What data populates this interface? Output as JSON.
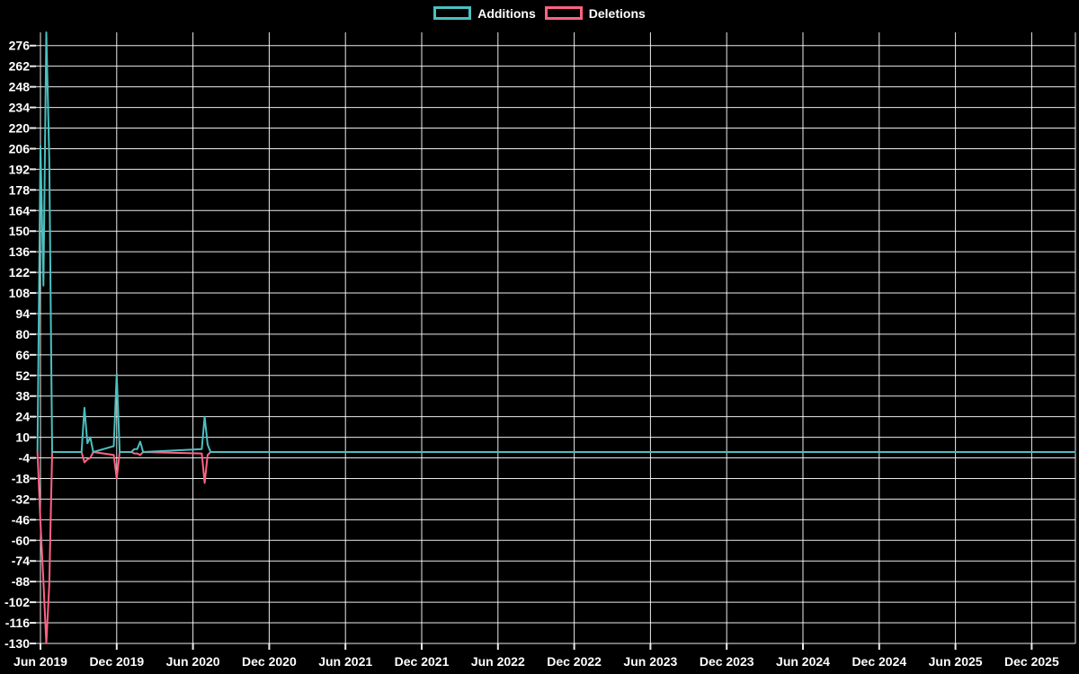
{
  "chart_data": {
    "type": "line",
    "title": "",
    "legend_position": "top-center",
    "background_color": "#000000",
    "grid": true,
    "grid_color": "#ffffff",
    "label_color": "#ffffff",
    "x_axis": {
      "unit": "weeks since mid-June 2019",
      "tick_labels": [
        "Jun 2019",
        "Dec 2019",
        "Jun 2020",
        "Dec 2020",
        "Jun 2021",
        "Dec 2021",
        "Jun 2022",
        "Dec 2022",
        "Jun 2023",
        "Dec 2023",
        "Jun 2024",
        "Dec 2024",
        "Jun 2025",
        "Dec 2025"
      ],
      "weeks_per_tick": 26
    },
    "y_axis": {
      "tick_values": [
        276,
        262,
        248,
        234,
        220,
        206,
        192,
        178,
        164,
        150,
        136,
        122,
        108,
        94,
        80,
        66,
        52,
        38,
        24,
        10,
        -4,
        -18,
        -32,
        -46,
        -60,
        -74,
        -88,
        -102,
        -116,
        -130
      ],
      "ylim": [
        -130,
        285
      ]
    },
    "series": [
      {
        "name": "Additions",
        "color": "#4bc0c0",
        "points": [
          [
            -1,
            0
          ],
          [
            0,
            208
          ],
          [
            1,
            113
          ],
          [
            2,
            285
          ],
          [
            3,
            199
          ],
          [
            4,
            0
          ],
          [
            14,
            0
          ],
          [
            15,
            30
          ],
          [
            16,
            6
          ],
          [
            17,
            10
          ],
          [
            18,
            0
          ],
          [
            25,
            4
          ],
          [
            26,
            53
          ],
          [
            27,
            0
          ],
          [
            31,
            0
          ],
          [
            32,
            2
          ],
          [
            33,
            2
          ],
          [
            34,
            7
          ],
          [
            35,
            0
          ],
          [
            55,
            2
          ],
          [
            56,
            24
          ],
          [
            57,
            5
          ],
          [
            58,
            0
          ],
          [
            353,
            0
          ]
        ]
      },
      {
        "name": "Deletions",
        "color": "#ff6384",
        "points": [
          [
            -1,
            0
          ],
          [
            0,
            -48
          ],
          [
            1,
            -88
          ],
          [
            2,
            -130
          ],
          [
            3,
            -90
          ],
          [
            4,
            0
          ],
          [
            14,
            0
          ],
          [
            15,
            -7
          ],
          [
            16,
            -5
          ],
          [
            17,
            -4
          ],
          [
            18,
            0
          ],
          [
            25,
            -2
          ],
          [
            26,
            -18
          ],
          [
            27,
            0
          ],
          [
            31,
            0
          ],
          [
            32,
            -1
          ],
          [
            33,
            -1
          ],
          [
            34,
            -2
          ],
          [
            35,
            0
          ],
          [
            55,
            -1
          ],
          [
            56,
            -21
          ],
          [
            57,
            -2
          ],
          [
            58,
            0
          ],
          [
            353,
            0
          ]
        ]
      }
    ]
  }
}
